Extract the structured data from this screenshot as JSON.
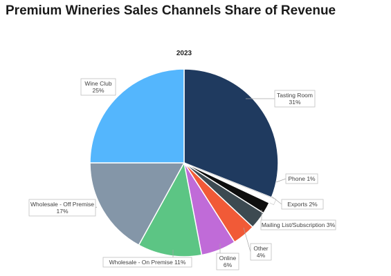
{
  "title": "Premium Wineries Sales Channels Share of Revenue",
  "chart_data": {
    "type": "pie",
    "subtitle": "2023",
    "slices": [
      {
        "label": "Tasting Room",
        "value": 31,
        "value_label": "31%",
        "color": "#1f3a5f",
        "exploded": false
      },
      {
        "label": "Phone",
        "value": 1,
        "value_label": "1%",
        "color": "#ffffff",
        "exploded": true
      },
      {
        "label": "Exports",
        "value": 2,
        "value_label": "2%",
        "color": "#0e0e0e",
        "exploded": false
      },
      {
        "label": "Mailing List/Subscription",
        "value": 3,
        "value_label": "3%",
        "color": "#3d4a51",
        "exploded": false
      },
      {
        "label": "Other",
        "value": 4,
        "value_label": "4%",
        "color": "#f15a37",
        "exploded": false
      },
      {
        "label": "Online",
        "value": 6,
        "value_label": "6%",
        "color": "#c06bd8",
        "exploded": false
      },
      {
        "label": "Wholesale - On Premise",
        "value": 11,
        "value_label": "11%",
        "color": "#5cc584",
        "exploded": false
      },
      {
        "label": "Wholesale - Off Premise",
        "value": 17,
        "value_label": "17%",
        "color": "#8496a8",
        "exploded": false
      },
      {
        "label": "Wine Club",
        "value": 25,
        "value_label": "25%",
        "color": "#54b6fd",
        "exploded": false
      }
    ]
  }
}
